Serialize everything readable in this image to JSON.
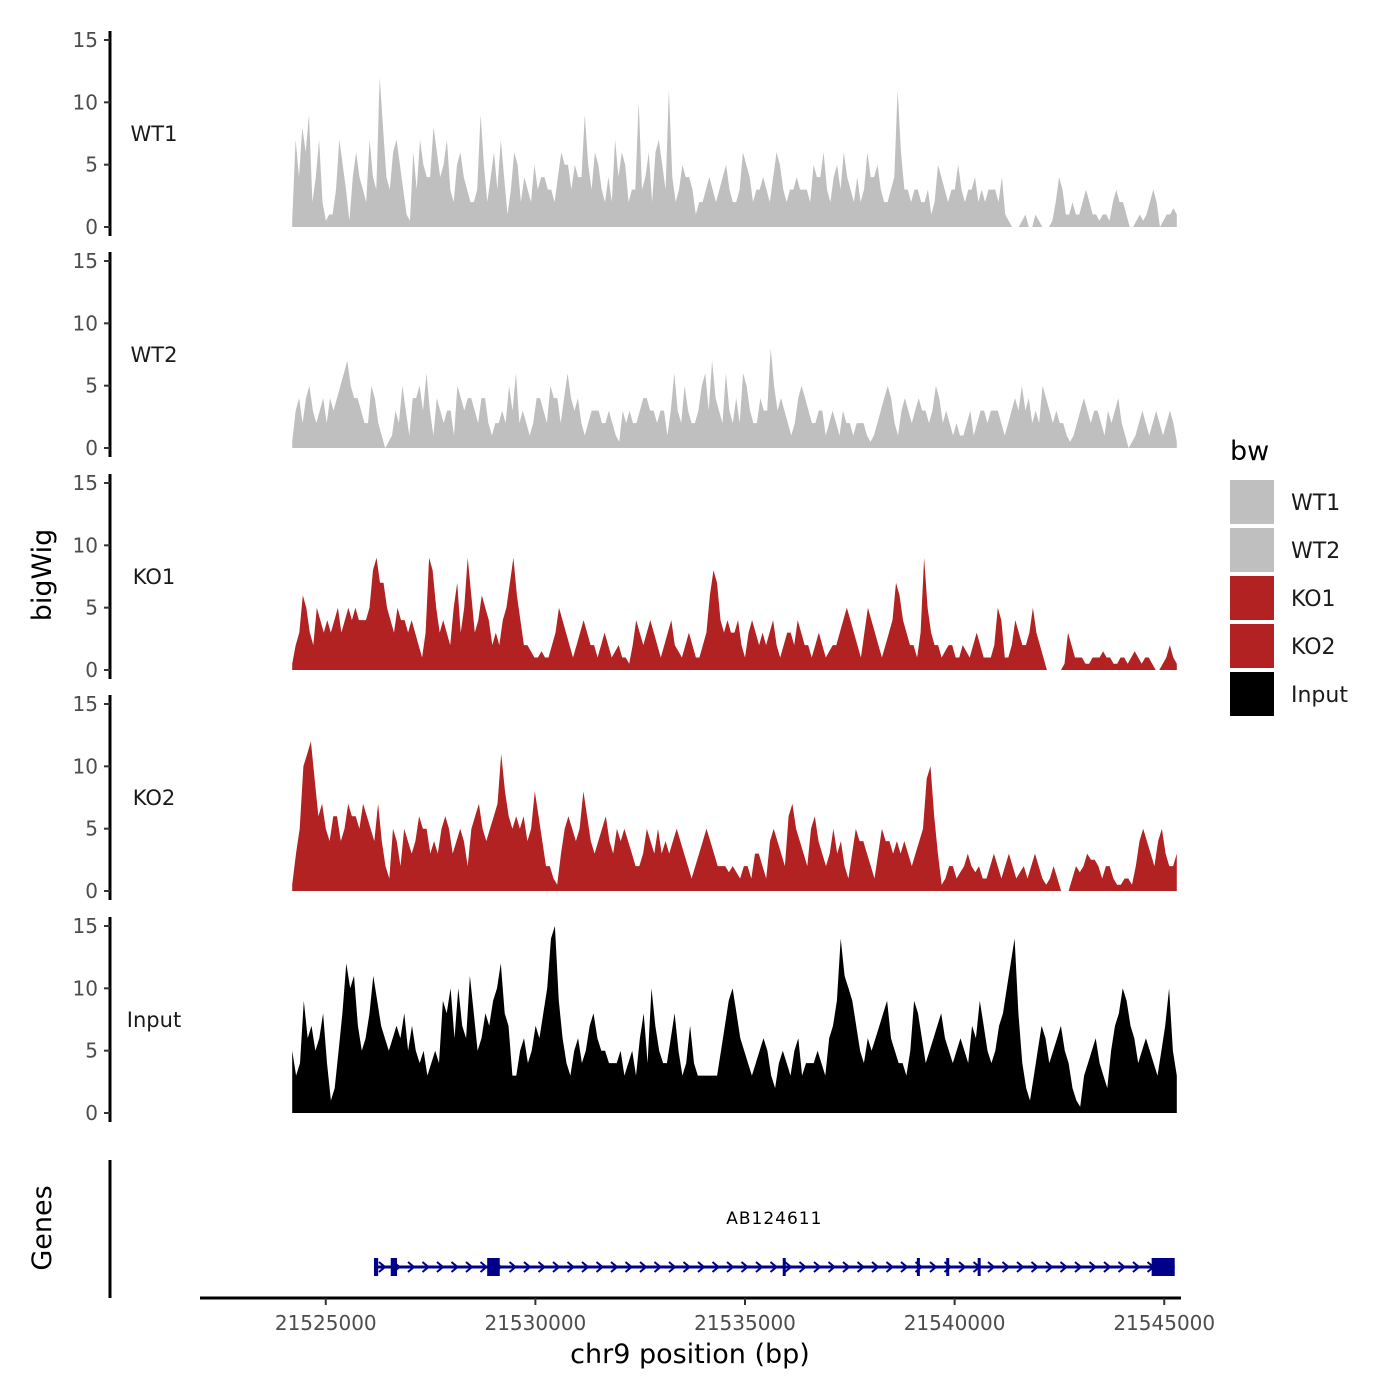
{
  "chart_data": {
    "type": "area",
    "title": "",
    "ylabel": "bigWig",
    "gene_track_label": "Genes",
    "xlabel": "chr9 position (bp)",
    "x_ticks": [
      21525000,
      21530000,
      21535000,
      21540000,
      21545000
    ],
    "xlim": [
      21522000,
      21545400
    ],
    "ylim": [
      0,
      15
    ],
    "y_ticks": [
      0,
      5,
      10,
      15
    ],
    "legend": {
      "title": "bw",
      "placement": "right",
      "items": [
        {
          "label": "WT1",
          "color": "#bfbfbf"
        },
        {
          "label": "WT2",
          "color": "#bfbfbf"
        },
        {
          "label": "KO1",
          "color": "#b22222"
        },
        {
          "label": "KO2",
          "color": "#b22222"
        },
        {
          "label": "Input",
          "color": "#000000"
        }
      ]
    },
    "x_range": [
      21524200,
      21545300
    ],
    "series": [
      {
        "name": "WT1",
        "color": "#bfbfbf",
        "values": [
          0.5,
          7,
          4,
          8,
          6,
          9,
          2,
          4,
          7,
          2,
          0.5,
          1,
          1,
          3,
          7,
          5,
          3,
          0.5,
          4,
          6,
          4,
          3,
          2,
          7,
          4,
          3,
          12,
          8,
          4,
          3,
          6,
          7,
          5,
          3,
          1,
          0.5,
          6,
          3,
          7,
          5,
          4,
          4,
          8,
          6,
          4,
          5,
          7,
          3,
          2,
          5,
          6,
          4,
          3,
          2,
          2,
          3,
          9,
          5,
          2,
          4,
          6,
          3,
          7,
          4,
          1,
          3,
          6,
          5,
          2,
          4,
          3,
          2,
          5,
          3,
          4,
          4,
          3,
          3,
          2,
          4,
          6,
          5,
          5,
          3,
          5,
          4,
          4,
          9,
          5,
          3,
          6,
          5,
          3,
          2,
          4,
          2,
          7,
          4,
          6,
          5,
          2,
          3,
          3,
          10,
          3,
          4,
          6,
          2,
          6,
          7,
          5,
          3,
          11,
          4,
          2,
          3,
          5,
          4,
          4,
          3,
          1,
          2,
          2,
          3,
          4,
          3,
          2,
          3,
          4,
          5,
          3,
          2,
          2,
          3,
          6,
          5,
          4,
          2,
          3,
          3,
          4,
          3,
          2,
          4,
          6,
          5,
          3,
          2,
          3,
          3,
          4,
          3,
          3,
          3,
          2,
          5,
          4,
          4,
          6,
          3,
          2,
          4,
          5,
          3,
          6,
          4,
          3,
          2,
          4,
          2,
          3,
          6,
          4,
          4,
          5,
          3,
          2,
          2,
          3,
          4,
          11,
          6,
          3,
          3,
          2,
          3,
          3,
          2,
          2,
          3,
          1,
          2,
          5,
          4,
          3,
          2,
          3,
          3,
          5,
          3,
          2,
          3,
          3,
          4,
          2,
          3,
          2,
          3,
          3,
          3,
          2,
          4,
          1,
          0.5,
          0,
          0,
          0,
          0.5,
          1,
          0,
          0,
          1,
          0.5,
          0,
          0,
          0,
          0.5,
          2,
          4,
          3,
          1,
          1,
          2,
          1,
          1,
          2,
          3,
          2,
          1,
          1,
          0.5,
          1,
          1,
          0.5,
          2,
          3,
          2,
          2,
          1,
          0,
          0,
          0.5,
          1,
          0.5,
          1,
          2,
          3,
          2,
          0,
          0.5,
          1,
          1,
          1.5,
          1
        ]
      },
      {
        "name": "WT2",
        "color": "#bfbfbf",
        "values": [
          0.5,
          3,
          4,
          2,
          4,
          5,
          3,
          2,
          3,
          4,
          2,
          4,
          3,
          4,
          5,
          6,
          7,
          5,
          4,
          4,
          3,
          2,
          2,
          5,
          4,
          2,
          1,
          0,
          0.5,
          1,
          3,
          2,
          5,
          3,
          1,
          4,
          4,
          5,
          3,
          6,
          3,
          1,
          4,
          3,
          2,
          3,
          3,
          1,
          5,
          4,
          3,
          4,
          4,
          3,
          2,
          4,
          4,
          2,
          1,
          2,
          2,
          3,
          2,
          5,
          3,
          6,
          2,
          3,
          2,
          1,
          2,
          4,
          4,
          3,
          2,
          5,
          4,
          4,
          2,
          4,
          6,
          4,
          3,
          4,
          2,
          1,
          2,
          3,
          3,
          3,
          2,
          2,
          3,
          2,
          1,
          0.5,
          3,
          2,
          3,
          2,
          2,
          3,
          4,
          4,
          3,
          3,
          2,
          3,
          3,
          1,
          3,
          6,
          3,
          2,
          5,
          3,
          2,
          2,
          3,
          5,
          6,
          3,
          7,
          4,
          3,
          2,
          6,
          3,
          2,
          4,
          2,
          6,
          5,
          3,
          2,
          2,
          4,
          3,
          3,
          8,
          5,
          3,
          4,
          3,
          2,
          1,
          2,
          4,
          5,
          4,
          3,
          2,
          2,
          3,
          3,
          1,
          2,
          3,
          2,
          1,
          3,
          2,
          2,
          1,
          2,
          2,
          2,
          1,
          0.5,
          1,
          2,
          3,
          4,
          5,
          4,
          2,
          1,
          3,
          4,
          3,
          2,
          3,
          4,
          3,
          3,
          2,
          3,
          5,
          4,
          2,
          3,
          2,
          1,
          2,
          1,
          1,
          2,
          3,
          1,
          2,
          3,
          3,
          2,
          3,
          3,
          3,
          2,
          1,
          2,
          3,
          4,
          3,
          5,
          3,
          4,
          2,
          3,
          2,
          5,
          4,
          3,
          2,
          3,
          2,
          2,
          1,
          0.5,
          1,
          2,
          3,
          4,
          3,
          2,
          3,
          3,
          2,
          1,
          3,
          2,
          3,
          4,
          2,
          1,
          0,
          0.5,
          1,
          2,
          3,
          2,
          1,
          2,
          3,
          2,
          1,
          2,
          3,
          2,
          0.5
        ]
      },
      {
        "name": "KO1",
        "color": "#b22222",
        "values": [
          0.5,
          2,
          3,
          6,
          5,
          3,
          2,
          5,
          4,
          3,
          4,
          3,
          4,
          5,
          3,
          4,
          5,
          4,
          5,
          4,
          4,
          4,
          5,
          8,
          9,
          7,
          7,
          5,
          4,
          3,
          5,
          4,
          4,
          3,
          4,
          3,
          2,
          1,
          3,
          9,
          8,
          5,
          3,
          4,
          3,
          2,
          5,
          7,
          3,
          5,
          9,
          6,
          3,
          4,
          6,
          5,
          4,
          2,
          3,
          2,
          4,
          5,
          7,
          9,
          6,
          4,
          2,
          2,
          1.5,
          1,
          1,
          1.5,
          1,
          1,
          2,
          3,
          5,
          4,
          3,
          2,
          1,
          2,
          3,
          4,
          3,
          2,
          2,
          1,
          2,
          3,
          2,
          1,
          1.5,
          2,
          1,
          1,
          0.5,
          2,
          4,
          3,
          2,
          3,
          4,
          3,
          2,
          1,
          2,
          3,
          4,
          2,
          1.5,
          1,
          2,
          3,
          2,
          1,
          1,
          2,
          3,
          6,
          8,
          7,
          4,
          3,
          4,
          3,
          3,
          4,
          2,
          1,
          3,
          4,
          3,
          2,
          3,
          2,
          3,
          4,
          2,
          1,
          2,
          3,
          3,
          2,
          4,
          3,
          2,
          2,
          1,
          2,
          3,
          2,
          1,
          1.5,
          2,
          2,
          3,
          4,
          5,
          4,
          3,
          2,
          1,
          3,
          5,
          4,
          3,
          2,
          1,
          2,
          3,
          4,
          7,
          6,
          4,
          3,
          2,
          2,
          1,
          3,
          9,
          5,
          3,
          2,
          2,
          1,
          1.5,
          2,
          2,
          1,
          1,
          2,
          1.5,
          1,
          2,
          3,
          2,
          1,
          1,
          1,
          2,
          5,
          4,
          1,
          1,
          2,
          4,
          3,
          2,
          2,
          3,
          5,
          3,
          2,
          1,
          0,
          0,
          0,
          0,
          0,
          0.5,
          3,
          2,
          1,
          1,
          1,
          0.5,
          0.5,
          1,
          1,
          1,
          1.5,
          1,
          1,
          0.5,
          0.5,
          1,
          1,
          0.5,
          1,
          1.5,
          1,
          0.5,
          1,
          1,
          0.5,
          0,
          0,
          0.5,
          1,
          2,
          1,
          0.5
        ]
      },
      {
        "name": "KO2",
        "color": "#b22222",
        "values": [
          0.5,
          3,
          5,
          10,
          11,
          12,
          9,
          6,
          7,
          5,
          4,
          6,
          6,
          4,
          5,
          7,
          6,
          6,
          5,
          7,
          6,
          5,
          4,
          7,
          4,
          2,
          1,
          5,
          4,
          2,
          5,
          4,
          3,
          4,
          6,
          5,
          5,
          3,
          4,
          3,
          5,
          6,
          5,
          3,
          4,
          5,
          4,
          2,
          5,
          6,
          7,
          5,
          4,
          5,
          6,
          7,
          11,
          8,
          6,
          5,
          6,
          5,
          6,
          4,
          5,
          8,
          6,
          4,
          2,
          2,
          1,
          0.5,
          3,
          5,
          6,
          5,
          4,
          5,
          8,
          6,
          4,
          3,
          4,
          5,
          6,
          4,
          3,
          5,
          4,
          5,
          4,
          3,
          2,
          2,
          3,
          5,
          4,
          3,
          5,
          3,
          4,
          3,
          4,
          5,
          4,
          3,
          2,
          1,
          2,
          3,
          4,
          5,
          4,
          3,
          2,
          2,
          2,
          1.5,
          2,
          1.5,
          1,
          2,
          2,
          1,
          3,
          3,
          2,
          1,
          4,
          5,
          4,
          3,
          2,
          6,
          7,
          5,
          4,
          3,
          2,
          5,
          6,
          4,
          3,
          2,
          3,
          5,
          3,
          4,
          2,
          1,
          3,
          5,
          4,
          4,
          3,
          2,
          1,
          3,
          5,
          4,
          4,
          3,
          4,
          3,
          4,
          3,
          2,
          3,
          4,
          5,
          9,
          10,
          6,
          3,
          0.5,
          1,
          2,
          2,
          1,
          1.5,
          2,
          3,
          2,
          1.5,
          2,
          1,
          1,
          2,
          3,
          2,
          1,
          2,
          3,
          2,
          1,
          1.5,
          2,
          1,
          2,
          3,
          2,
          1,
          0.5,
          1,
          2,
          1,
          0,
          0,
          0,
          1,
          2,
          1.5,
          2,
          3,
          2.5,
          2.5,
          2,
          1,
          2,
          2,
          1,
          0.5,
          0.5,
          1,
          1,
          0.5,
          2,
          4,
          5,
          4,
          3,
          2,
          4,
          5,
          3,
          2,
          2,
          3
        ]
      },
      {
        "name": "Input",
        "color": "#000000",
        "values": [
          5,
          3,
          4,
          9,
          6,
          7,
          5,
          6,
          8,
          4,
          1,
          2,
          5,
          8,
          12,
          10,
          11,
          7,
          5,
          6,
          8,
          11,
          9,
          7,
          6,
          5,
          6,
          7,
          6,
          8,
          5,
          7,
          5,
          4,
          5,
          3,
          4,
          5,
          4,
          9,
          8,
          10,
          6,
          10,
          7,
          6,
          11,
          8,
          5,
          6,
          8,
          7,
          9,
          10,
          12,
          8,
          7,
          3,
          3,
          5,
          6,
          4,
          5,
          7,
          6,
          8,
          10,
          14,
          15,
          9,
          6,
          4,
          3,
          5,
          6,
          4,
          5,
          7,
          8,
          6,
          5,
          5,
          4,
          4,
          4,
          5,
          3,
          4,
          5,
          3,
          6,
          8,
          4,
          10,
          7,
          5,
          4,
          4,
          6,
          8,
          5,
          3,
          4,
          7,
          4,
          3,
          3,
          3,
          3,
          3,
          3,
          5,
          7,
          9,
          10,
          8,
          6,
          5,
          4,
          3,
          4,
          5,
          6,
          5,
          3,
          2,
          4,
          5,
          4,
          3,
          5,
          6,
          3,
          4,
          4,
          4,
          5,
          4,
          3,
          6,
          7,
          9,
          14,
          11,
          10,
          9,
          7,
          5,
          4,
          6,
          5,
          6,
          7,
          8,
          9,
          6,
          5,
          4,
          4,
          3,
          5,
          9,
          8,
          6,
          4,
          5,
          6,
          7,
          8,
          6,
          5,
          4,
          5,
          6,
          5,
          4,
          7,
          6,
          9,
          7,
          5,
          4,
          5,
          7,
          8,
          10,
          12,
          14,
          8,
          4,
          2,
          1,
          3,
          5,
          7,
          6,
          4,
          5,
          6,
          7,
          5,
          4,
          2,
          1,
          0.5,
          3,
          4,
          5,
          6,
          4,
          3,
          2,
          5,
          7,
          8,
          10,
          9,
          7,
          6,
          4,
          5,
          6,
          5,
          4,
          3,
          5,
          7,
          10,
          5,
          3
        ]
      }
    ],
    "genes": [
      {
        "name": "AB124611",
        "strand": "+",
        "start": 21526150,
        "end": 21545250,
        "exons": [
          [
            21526150,
            21526250
          ],
          [
            21526550,
            21526700
          ],
          [
            21528850,
            21529150
          ],
          [
            21535900,
            21535950
          ],
          [
            21539100,
            21539150
          ],
          [
            21539800,
            21539850
          ],
          [
            21540550,
            21540600
          ],
          [
            21544700,
            21545250
          ]
        ]
      }
    ]
  }
}
